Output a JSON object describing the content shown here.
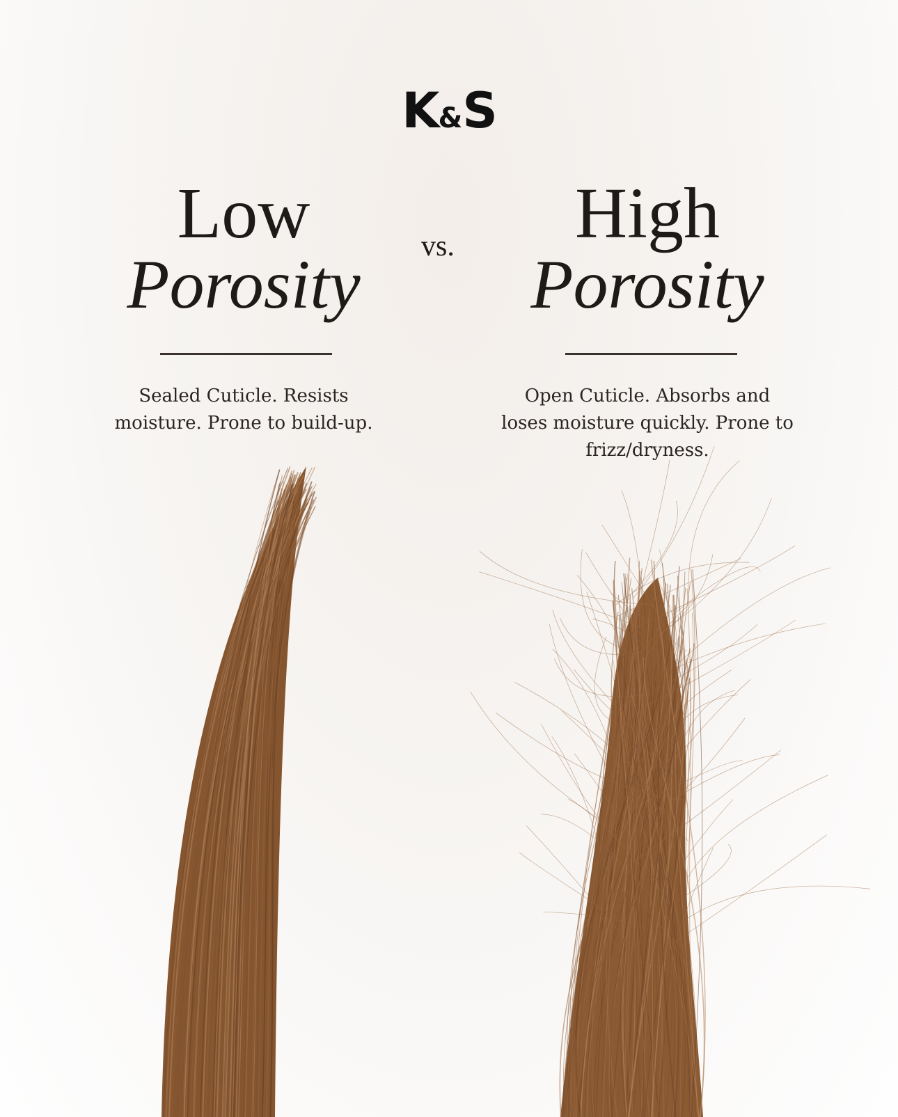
{
  "logo": {
    "text_left": "K",
    "amp": "&",
    "text_right": "S"
  },
  "left": {
    "title_line1": "Low",
    "title_line2": "Porosity",
    "description": "Sealed Cuticle. Resists moisture. Prone to build-up."
  },
  "vs_label": "vs.",
  "right": {
    "title_line1": "High",
    "title_line2": "Porosity",
    "description": "Open Cuticle. Absorbs and loses moisture quickly. Prone to frizz/dryness."
  },
  "colors": {
    "hair": "#8a5a33",
    "text": "#1d1a18",
    "background": "#f6f3f0"
  }
}
